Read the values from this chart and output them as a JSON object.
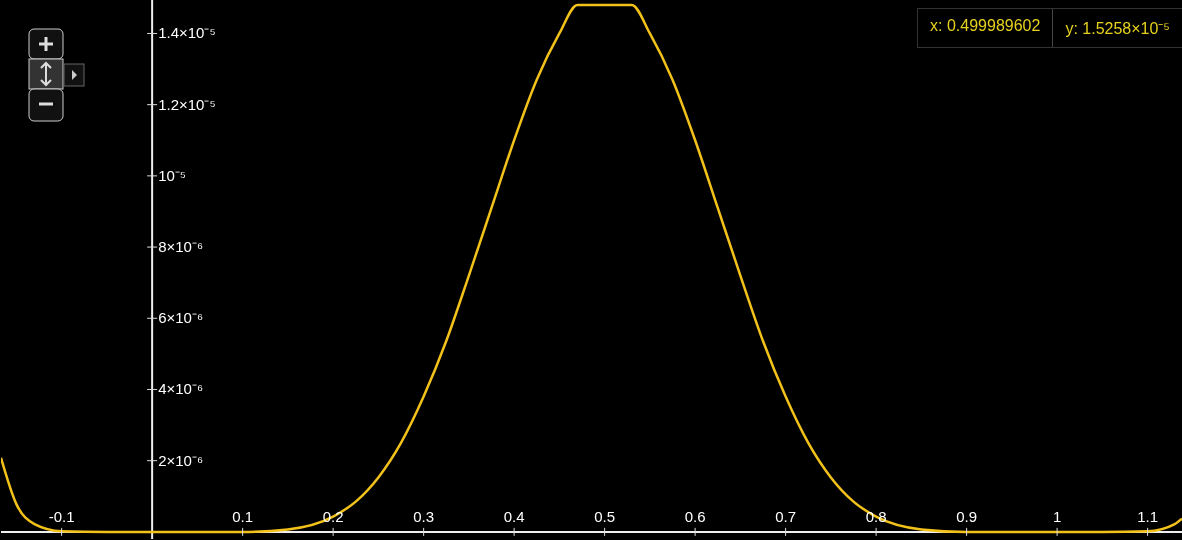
{
  "chart_data": {
    "type": "line",
    "x": [
      -0.167,
      -0.15,
      -0.13,
      -0.1,
      -0.05,
      0,
      0.05,
      0.1,
      0.15,
      0.2,
      0.225,
      0.25,
      0.275,
      0.3,
      0.325,
      0.35,
      0.375,
      0.4,
      0.425,
      0.45,
      0.47,
      0.53,
      0.55,
      0.575,
      0.6,
      0.625,
      0.65,
      0.675,
      0.7,
      0.725,
      0.75,
      0.775,
      0.8,
      0.85,
      0.9,
      0.95,
      1,
      1.05,
      1.1,
      1.13,
      1.138
    ],
    "series": [
      {
        "color": "#f2c21b",
        "values": [
          2.08e-06,
          7.8e-07,
          2.2e-07,
          2e-08,
          0,
          0,
          0,
          0,
          7e-08,
          4.3e-07,
          8.5e-07,
          1.53e-06,
          2.5e-06,
          3.8e-06,
          5.36e-06,
          7.2e-06,
          9.1e-06,
          1.1e-05,
          1.27e-05,
          1.4e-05,
          1.48e-05,
          1.48e-05,
          1.4e-05,
          1.27e-05,
          1.1e-05,
          9.1e-06,
          7.2e-06,
          5.36e-06,
          3.8e-06,
          2.5e-06,
          1.53e-06,
          8.5e-07,
          4.3e-07,
          7e-08,
          0,
          0,
          0,
          0,
          2e-08,
          2.2e-07,
          3.7e-07
        ]
      }
    ],
    "xlim": [
      -0.167,
      1.138
    ],
    "ylim": [
      -2e-07,
      1.494e-05
    ],
    "xticks": [
      -0.1,
      0.1,
      0.2,
      0.3,
      0.4,
      0.5,
      0.6,
      0.7,
      0.8,
      0.9,
      1,
      1.1
    ],
    "yticks": [
      {
        "value": 2e-06,
        "label": "2×10⁻⁶"
      },
      {
        "value": 4e-06,
        "label": "4×10⁻⁶"
      },
      {
        "value": 6e-06,
        "label": "6×10⁻⁶"
      },
      {
        "value": 8e-06,
        "label": "8×10⁻⁶"
      },
      {
        "value": 1e-05,
        "label": "10⁻⁵"
      },
      {
        "value": 1.2e-05,
        "label": "1.2×10⁻⁵"
      },
      {
        "value": 1.4e-05,
        "label": "1.4×10⁻⁵"
      }
    ],
    "annotations": [
      "x: 0.499989602",
      "y: 1.5258×10⁻⁵"
    ],
    "grid": false,
    "legend": false,
    "marker": "none",
    "line_style": "solid"
  }
}
